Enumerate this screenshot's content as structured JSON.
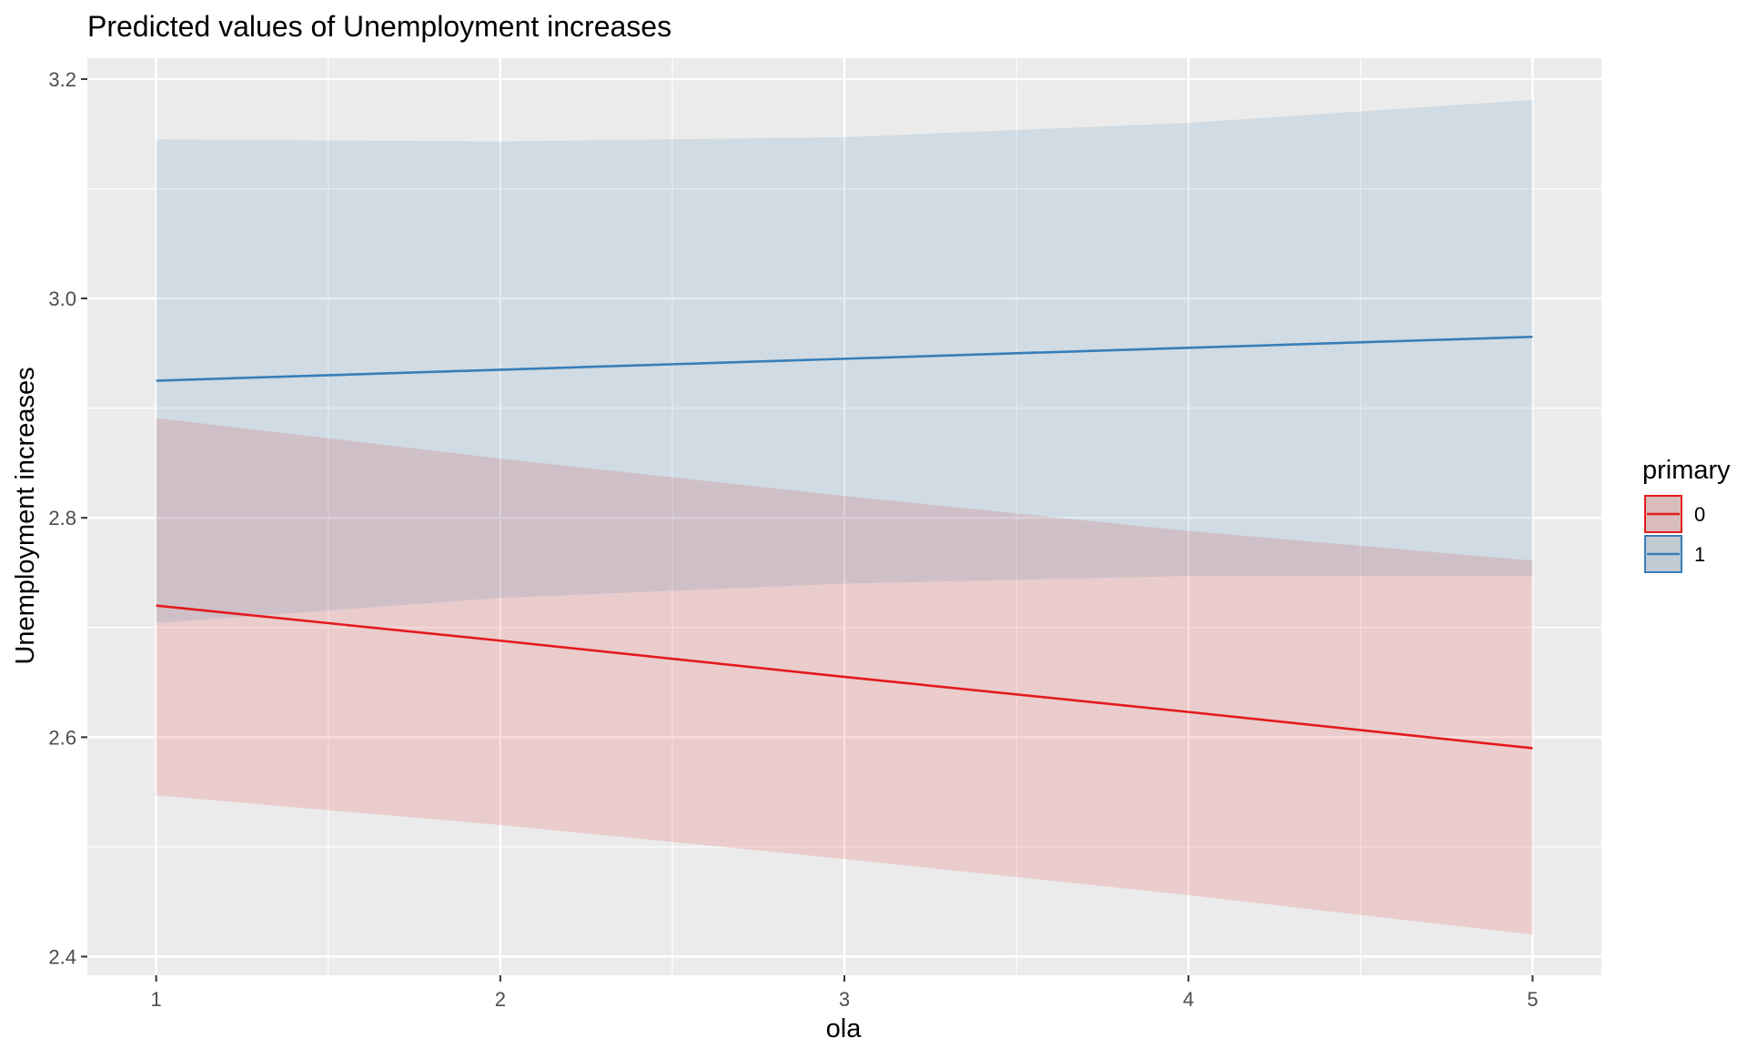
{
  "chart_data": {
    "type": "line",
    "title": "Predicted values of Unemployment increases",
    "xlabel": "ola",
    "ylabel": "Unemployment increases",
    "x": [
      1,
      2,
      3,
      4,
      5
    ],
    "xlim": [
      0.8,
      5.2
    ],
    "ylim": [
      2.383,
      3.219
    ],
    "x_ticks": [
      1,
      2,
      3,
      4,
      5
    ],
    "x_tick_labels": [
      "1",
      "2",
      "3",
      "4",
      "5"
    ],
    "y_ticks": [
      2.4,
      2.6,
      2.8,
      3.0,
      3.2
    ],
    "y_tick_labels": [
      "2.4",
      "2.6",
      "2.8",
      "3.0",
      "3.2"
    ],
    "grid": true,
    "background": "#ebebeb",
    "legend": {
      "title": "primary",
      "position": "right"
    },
    "series": [
      {
        "name": "0",
        "color": "#e41a1c",
        "values": [
          2.72,
          2.688,
          2.655,
          2.623,
          2.59
        ],
        "lower": [
          2.547,
          2.52,
          2.489,
          2.456,
          2.42
        ],
        "upper": [
          2.891,
          2.854,
          2.82,
          2.788,
          2.761
        ]
      },
      {
        "name": "1",
        "color": "#377eb8",
        "values": [
          2.925,
          2.935,
          2.945,
          2.955,
          2.965
        ],
        "lower": [
          2.704,
          2.727,
          2.74,
          2.747,
          2.747
        ],
        "upper": [
          3.145,
          3.143,
          3.147,
          3.16,
          3.181
        ]
      }
    ]
  }
}
